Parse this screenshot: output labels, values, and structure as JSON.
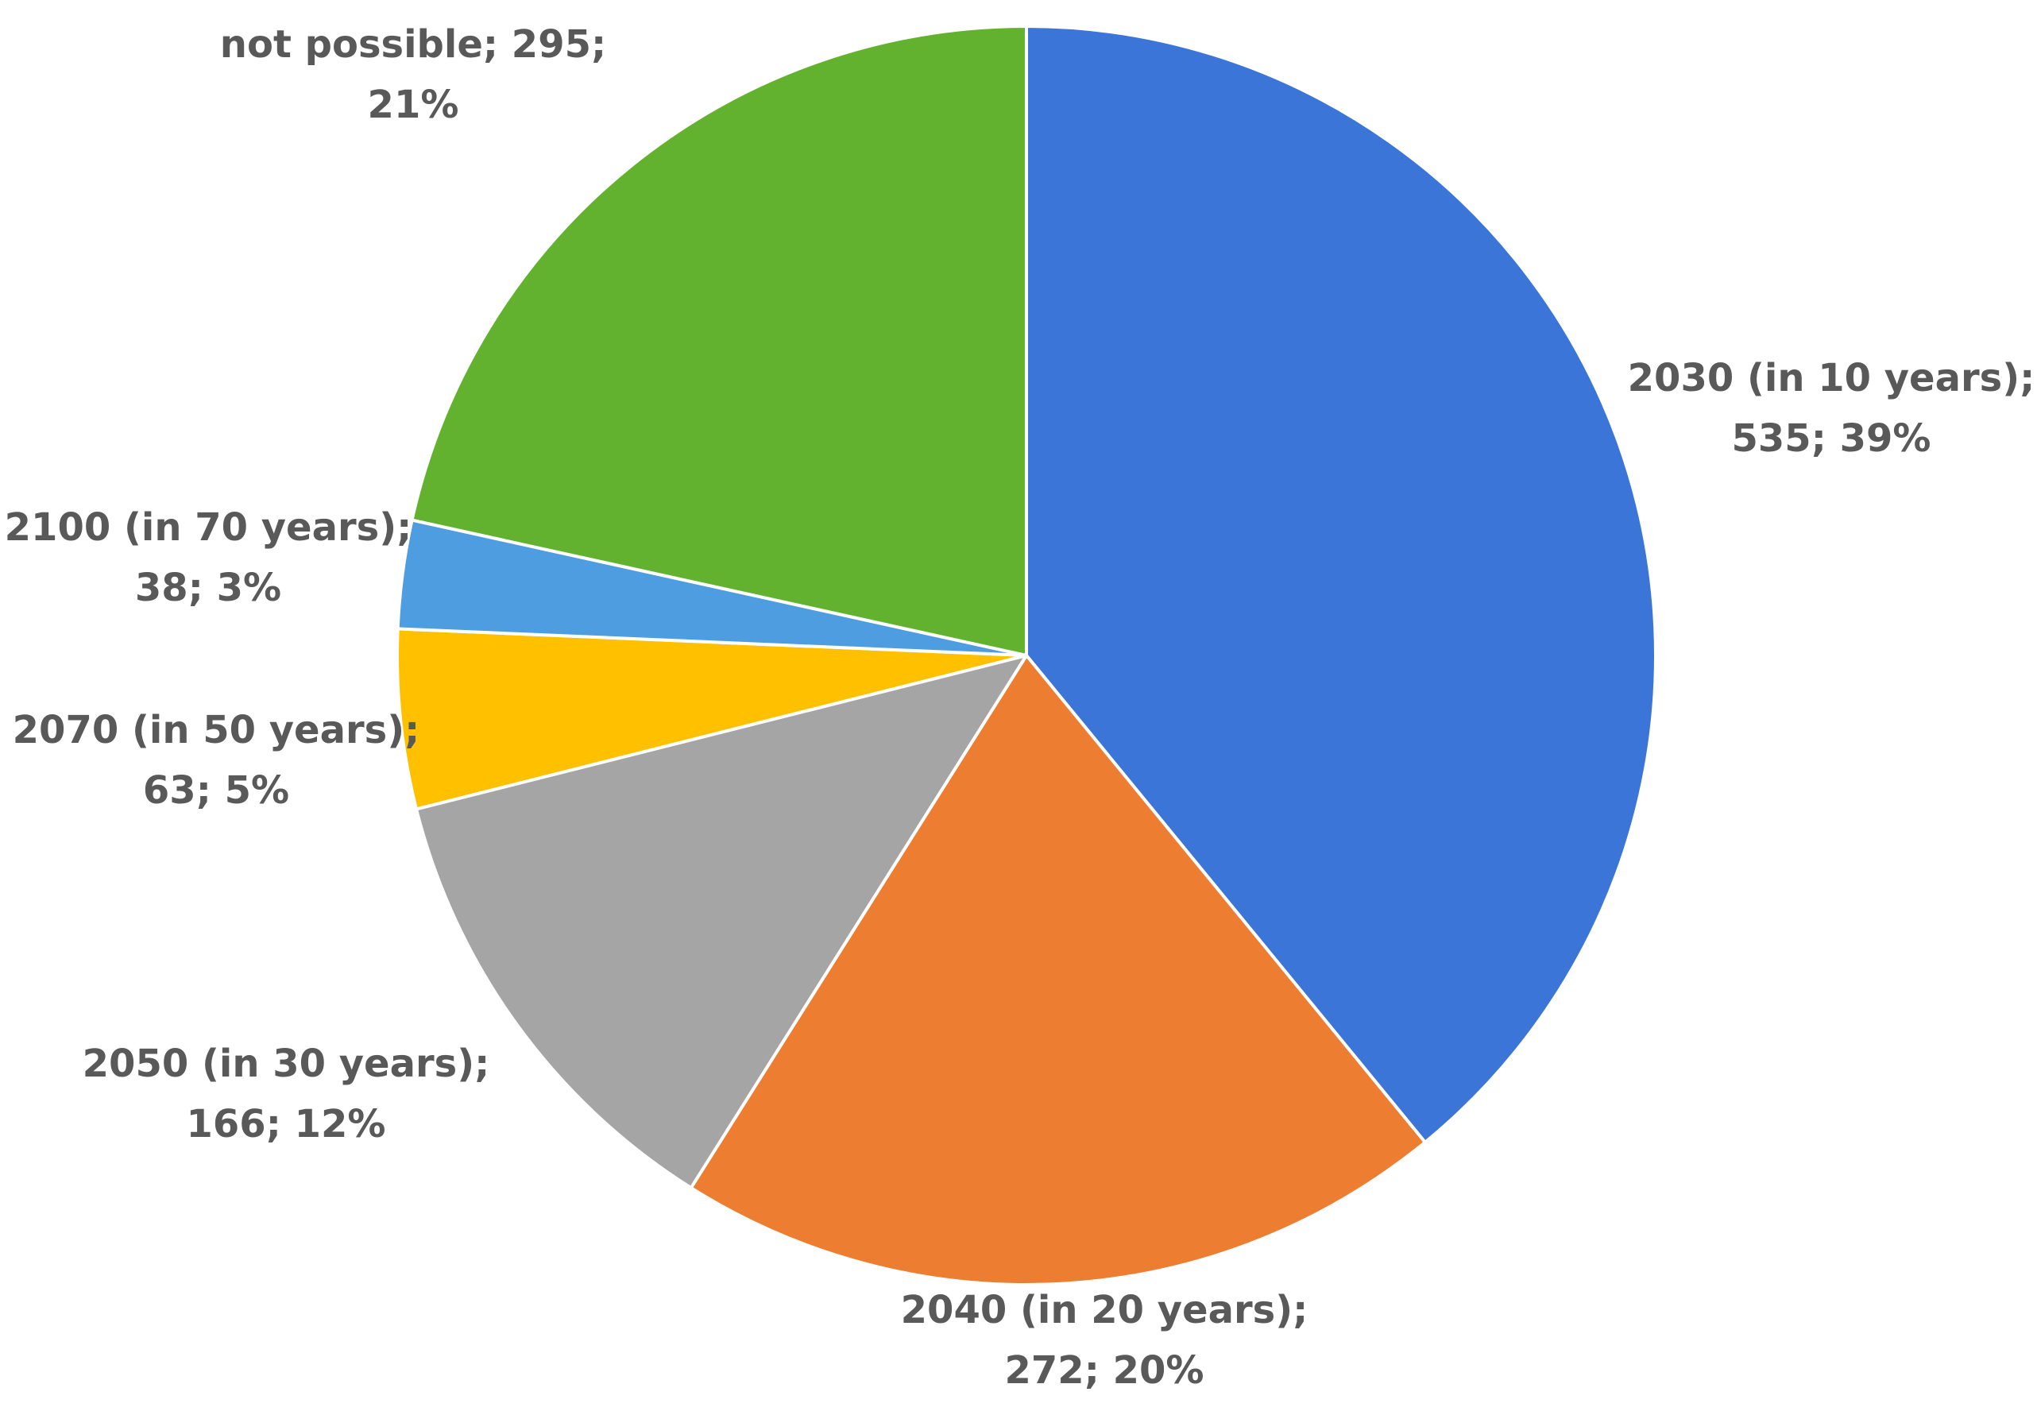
{
  "chart_data": {
    "type": "pie",
    "title": "",
    "start_angle_deg": 0,
    "direction": "clockwise",
    "slices": [
      {
        "label": "2030 (in 10 years)",
        "value": 535,
        "percent": "39%",
        "color": "#3A75D7",
        "label_line1": "2030 (in 10 years);",
        "label_line2": "535; 39%"
      },
      {
        "label": "2040 (in 20 years)",
        "value": 272,
        "percent": "20%",
        "color": "#EC7D31",
        "label_line1": "2040 (in 20 years);",
        "label_line2": "272; 20%"
      },
      {
        "label": "2050 (in 30 years)",
        "value": 166,
        "percent": "12%",
        "color": "#A5A5A5",
        "label_line1": "2050 (in 30 years);",
        "label_line2": "166; 12%"
      },
      {
        "label": "2070 (in 50 years)",
        "value": 63,
        "percent": "5%",
        "color": "#FFC000",
        "label_line1": "2070 (in 50 years);",
        "label_line2": "63; 5%"
      },
      {
        "label": "2100 (in 70 years)",
        "value": 38,
        "percent": "3%",
        "color": "#4D9DE0",
        "label_line1": "2100 (in 70 years);",
        "label_line2": "38; 3%"
      },
      {
        "label": "not possible",
        "value": 295,
        "percent": "21%",
        "color": "#62B22F",
        "label_line1": "not possible; 295;",
        "label_line2": "21%"
      }
    ]
  }
}
